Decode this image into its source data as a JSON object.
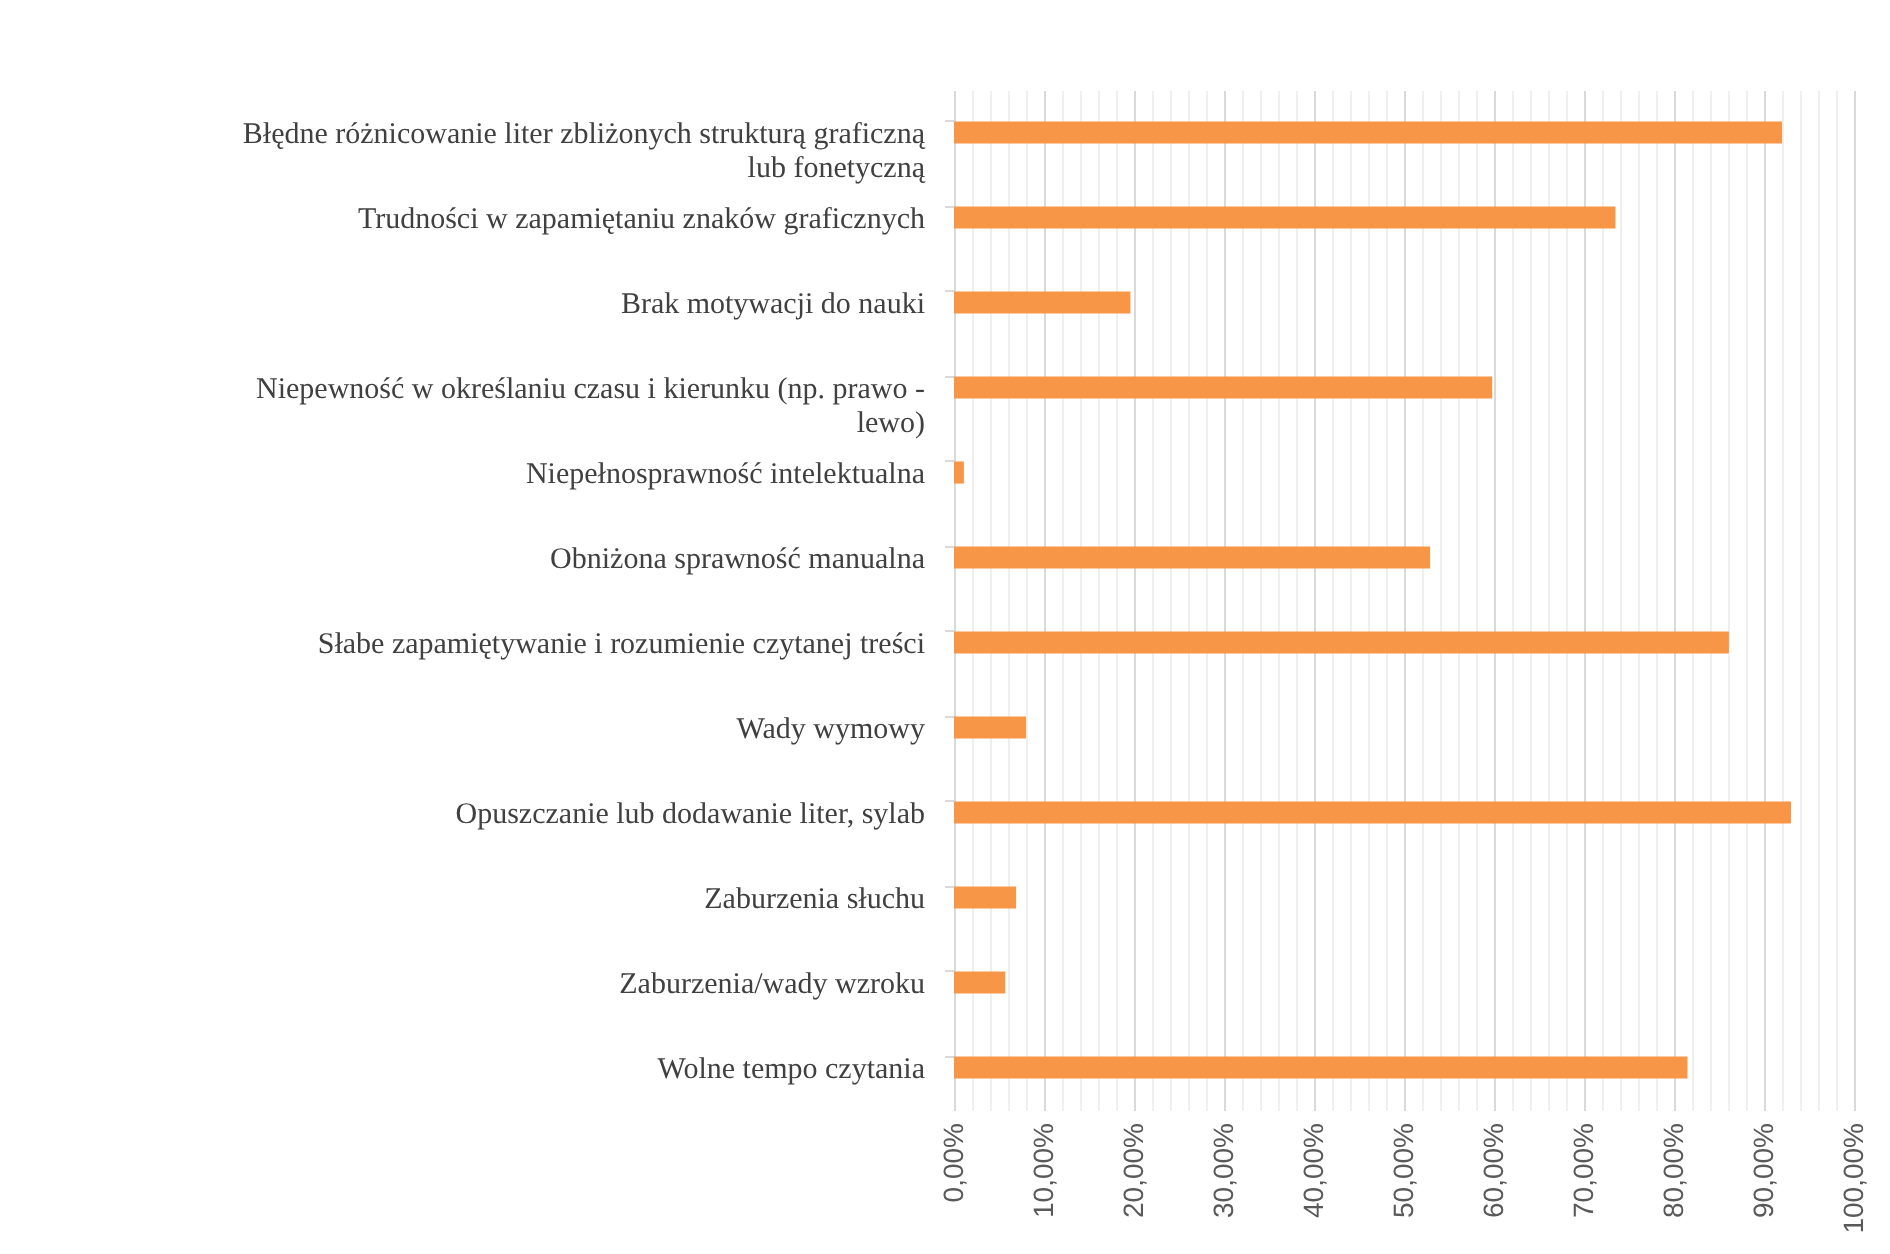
{
  "chart_data": {
    "type": "bar",
    "orientation": "horizontal",
    "categories": [
      "Błędne różnicowanie liter zbliżonych strukturą graficzną lub fonetyczną",
      "Trudności w zapamiętaniu znaków graficznych",
      "Brak motywacji do nauki",
      "Niepewność w określaniu czasu i kierunku (np. prawo - lewo)",
      "Niepełnosprawność intelektualna",
      "Obniżona sprawność manualna",
      "Słabe zapamiętywanie i rozumienie czytanej treści",
      "Wady wymowy",
      "Opuszczanie lub dodawanie liter, sylab",
      "Zaburzenia słuchu",
      "Zaburzenia/wady wzroku",
      "Wolne tempo czytania"
    ],
    "values": [
      92,
      73.5,
      19.6,
      59.8,
      1.1,
      52.9,
      86.1,
      8,
      93,
      6.9,
      5.7,
      81.5
    ],
    "color": "#f79646",
    "xlim": [
      0,
      100
    ],
    "xticks": [
      {
        "value": 0,
        "label": "0,00%"
      },
      {
        "value": 2,
        "label": null
      },
      {
        "value": 4,
        "label": null
      },
      {
        "value": 6,
        "label": null
      },
      {
        "value": 8,
        "label": null
      },
      {
        "value": 10,
        "label": "10,00%"
      },
      {
        "value": 12,
        "label": null
      },
      {
        "value": 14,
        "label": null
      },
      {
        "value": 16,
        "label": null
      },
      {
        "value": 18,
        "label": null
      },
      {
        "value": 20,
        "label": "20,00%"
      },
      {
        "value": 22,
        "label": null
      },
      {
        "value": 24,
        "label": null
      },
      {
        "value": 26,
        "label": null
      },
      {
        "value": 28,
        "label": null
      },
      {
        "value": 30,
        "label": "30,00%"
      },
      {
        "value": 32,
        "label": null
      },
      {
        "value": 34,
        "label": null
      },
      {
        "value": 36,
        "label": null
      },
      {
        "value": 38,
        "label": null
      },
      {
        "value": 40,
        "label": "40,00%"
      },
      {
        "value": 42,
        "label": null
      },
      {
        "value": 44,
        "label": null
      },
      {
        "value": 46,
        "label": null
      },
      {
        "value": 48,
        "label": null
      },
      {
        "value": 50,
        "label": "50,00%"
      },
      {
        "value": 52,
        "label": null
      },
      {
        "value": 54,
        "label": null
      },
      {
        "value": 56,
        "label": null
      },
      {
        "value": 58,
        "label": null
      },
      {
        "value": 60,
        "label": "60,00%"
      },
      {
        "value": 62,
        "label": null
      },
      {
        "value": 64,
        "label": null
      },
      {
        "value": 66,
        "label": null
      },
      {
        "value": 68,
        "label": null
      },
      {
        "value": 70,
        "label": "70,00%"
      },
      {
        "value": 72,
        "label": null
      },
      {
        "value": 74,
        "label": null
      },
      {
        "value": 76,
        "label": null
      },
      {
        "value": 78,
        "label": null
      },
      {
        "value": 80,
        "label": "80,00%"
      },
      {
        "value": 82,
        "label": null
      },
      {
        "value": 84,
        "label": null
      },
      {
        "value": 86,
        "label": null
      },
      {
        "value": 88,
        "label": null
      },
      {
        "value": 90,
        "label": "90,00%"
      },
      {
        "value": 92,
        "label": null
      },
      {
        "value": 94,
        "label": null
      },
      {
        "value": 96,
        "label": null
      },
      {
        "value": 98,
        "label": null
      },
      {
        "value": 100,
        "label": "100,00%"
      }
    ],
    "grid": "x"
  }
}
